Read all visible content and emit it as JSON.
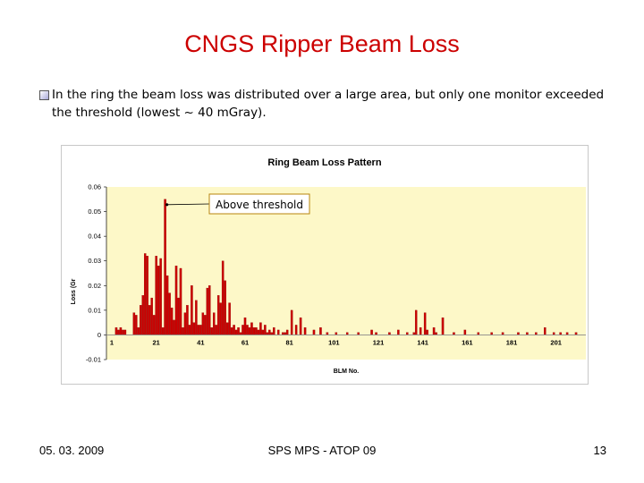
{
  "slide": {
    "title": "CNGS Ripper Beam Loss",
    "bullet": "In the ring the beam loss was distributed over a large area, but only one monitor exceeded the threshold (lowest ~ 40 mGray).",
    "footer_date": "05. 03. 2009",
    "footer_center": "SPS MPS - ATOP 09",
    "footer_page": "13"
  },
  "icons": {
    "bullet": "square-bullet-icon"
  },
  "colors": {
    "title": "#cc0000",
    "plot_bg": "#fdf8c8",
    "bar": "#cc0000",
    "bar_edge": "#8b0000",
    "annotation_border": "#b8860b"
  },
  "chart_data": {
    "type": "bar",
    "title": "Ring Beam Loss Pattern",
    "xlabel": "BLM No.",
    "ylabel": "Loss (Gr",
    "ylim": [
      -0.01,
      0.06
    ],
    "yticks": [
      "0.06",
      "0.05",
      "0.04",
      "0.03",
      "0.02",
      "0.01",
      "0",
      "-0.01"
    ],
    "yticks_values": [
      0.06,
      0.05,
      0.04,
      0.03,
      0.02,
      0.01,
      0,
      -0.01
    ],
    "xticks": [
      "1",
      "21",
      "41",
      "61",
      "81",
      "101",
      "121",
      "141",
      "161",
      "181",
      "201"
    ],
    "xticks_values": [
      1,
      21,
      41,
      61,
      81,
      101,
      121,
      141,
      161,
      181,
      201
    ],
    "x_range": [
      1,
      212
    ],
    "grid": false,
    "annotation": {
      "text": "Above threshold",
      "target_x": 25
    },
    "x": [
      3,
      4,
      5,
      6,
      7,
      11,
      12,
      13,
      14,
      15,
      16,
      17,
      18,
      19,
      20,
      21,
      22,
      23,
      24,
      25,
      26,
      27,
      28,
      29,
      30,
      31,
      32,
      33,
      34,
      35,
      36,
      37,
      38,
      39,
      40,
      41,
      42,
      43,
      44,
      45,
      46,
      47,
      48,
      49,
      50,
      51,
      52,
      53,
      54,
      55,
      56,
      57,
      58,
      59,
      60,
      61,
      62,
      63,
      64,
      65,
      66,
      67,
      68,
      69,
      70,
      71,
      72,
      73,
      74,
      76,
      78,
      79,
      80,
      82,
      84,
      86,
      88,
      92,
      95,
      98,
      102,
      107,
      112,
      118,
      120,
      126,
      130,
      134,
      137,
      138,
      140,
      142,
      143,
      146,
      147,
      150,
      155,
      160,
      166,
      172,
      177,
      184,
      188,
      192,
      196,
      200,
      203,
      206,
      210
    ],
    "values": [
      0.003,
      0.002,
      0.003,
      0.002,
      0.002,
      0.009,
      0.008,
      0.003,
      0.012,
      0.016,
      0.033,
      0.032,
      0.012,
      0.015,
      0.008,
      0.032,
      0.028,
      0.031,
      0.003,
      0.055,
      0.024,
      0.017,
      0.011,
      0.006,
      0.028,
      0.015,
      0.027,
      0.003,
      0.009,
      0.012,
      0.004,
      0.02,
      0.005,
      0.014,
      0.004,
      0.004,
      0.009,
      0.008,
      0.019,
      0.02,
      0.003,
      0.009,
      0.004,
      0.016,
      0.013,
      0.03,
      0.022,
      0.005,
      0.013,
      0.003,
      0.004,
      0.002,
      0.003,
      0.001,
      0.004,
      0.007,
      0.004,
      0.003,
      0.005,
      0.003,
      0.003,
      0.002,
      0.005,
      0.002,
      0.004,
      0.001,
      0.002,
      0.001,
      0.003,
      0.002,
      0.001,
      0.001,
      0.002,
      0.01,
      0.004,
      0.007,
      0.003,
      0.002,
      0.003,
      0.001,
      0.001,
      0.001,
      0.001,
      0.002,
      0.001,
      0.001,
      0.002,
      0.001,
      0.001,
      0.01,
      0.003,
      0.009,
      0.002,
      0.003,
      0.001,
      0.007,
      0.001,
      0.002,
      0.001,
      0.001,
      0.001,
      0.001,
      0.001,
      0.001,
      0.003,
      0.001,
      0.001,
      0.001,
      0.001
    ]
  }
}
